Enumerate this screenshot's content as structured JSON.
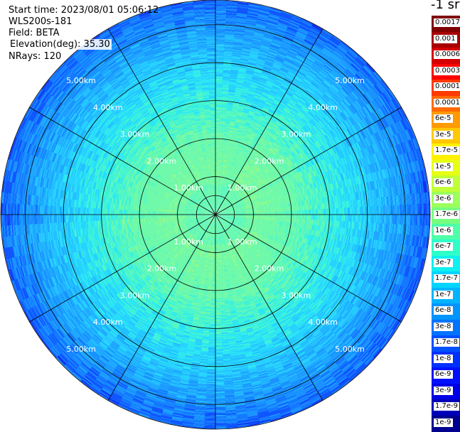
{
  "info": {
    "start_time": "Start time: 2023/08/01 05:06:12",
    "system": "WLS200s-181",
    "field": "Field: BETA",
    "elevation": "Elevation(deg): 35.30",
    "nrays": "NRays: 120"
  },
  "colorbar": {
    "unit": "-1 sr",
    "labels": [
      "0.0017",
      "0.001",
      "0.0006",
      "0.0003",
      "0.00017",
      "0.0001",
      "6e-5",
      "3e-5",
      "1.7e-5",
      "1e-5",
      "6e-6",
      "3e-6",
      "1.7e-6",
      "1e-6",
      "6e-7",
      "3e-7",
      "1.7e-7",
      "1e-7",
      "6e-8",
      "3e-8",
      "1.7e-8",
      "1e-8",
      "6e-9",
      "3e-9",
      "1.7e-9",
      "1e-9"
    ],
    "colors": [
      "#7f0000",
      "#a80000",
      "#d40000",
      "#ff0000",
      "#ff3a00",
      "#ff6a00",
      "#ff9a00",
      "#ffc800",
      "#fff000",
      "#e6ff12",
      "#c0ff37",
      "#9bff5c",
      "#77ff80",
      "#4fffa8",
      "#2effc9",
      "#0ff0f0",
      "#00d4ff",
      "#00b4ff",
      "#0094ff",
      "#0074ff",
      "#0050ff",
      "#0030ff",
      "#0010ff",
      "#0000e6",
      "#0000b8",
      "#00008f"
    ]
  },
  "chart_data": {
    "type": "heatmap",
    "projection": "polar (PPI)",
    "field": "BETA",
    "nrays": 120,
    "range_rings_km": [
      1,
      2,
      3,
      4,
      5
    ],
    "range_labels": [
      "1.00km",
      "2.00km",
      "3.00km",
      "4.00km",
      "5.00km"
    ],
    "max_range_km": 5.65,
    "spokes_deg": [
      0,
      30,
      60,
      90,
      120,
      150,
      180,
      210,
      240,
      270,
      300,
      330
    ],
    "radial_profile": [
      {
        "range_km": 0.0,
        "value": "1.7e-6"
      },
      {
        "range_km": 1.0,
        "value": "1.7e-6"
      },
      {
        "range_km": 2.0,
        "value": "1e-6"
      },
      {
        "range_km": 3.0,
        "value": "3e-7"
      },
      {
        "range_km": 4.0,
        "value": "1e-7"
      },
      {
        "range_km": 5.0,
        "value": "3e-8"
      }
    ]
  }
}
